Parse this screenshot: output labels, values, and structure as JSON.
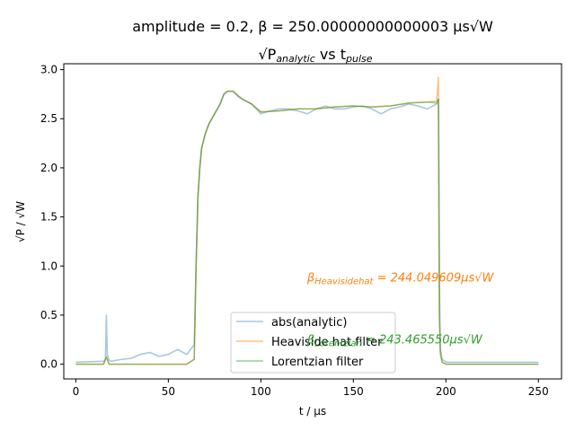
{
  "chart_data": {
    "type": "line",
    "title_line1": "amplitude = 0.2, β = 250.00000000000003 µs√W",
    "title_line2_base": "√P",
    "title_line2_sub": "analytic",
    "title_line2_mid": " vs t",
    "title_line2_sub2": "pulse",
    "xlabel": "t / µs",
    "ylabel": "√P / √W",
    "xlim": [
      -6.5,
      262.5
    ],
    "ylim": [
      -0.15,
      3.06
    ],
    "xticks": [
      0,
      50,
      100,
      150,
      200,
      250
    ],
    "yticks": [
      0.0,
      0.5,
      1.0,
      1.5,
      2.0,
      2.5,
      3.0
    ],
    "xtick_labels": [
      "0",
      "50",
      "100",
      "150",
      "200",
      "250"
    ],
    "ytick_labels": [
      "0.0",
      "0.5",
      "1.0",
      "1.5",
      "2.0",
      "2.5",
      "3.0"
    ],
    "grid": false,
    "legend_position": "lower-center",
    "series": [
      {
        "name": "abs(analytic)",
        "color": "#1f77b4",
        "alpha": 0.4,
        "x": [
          0,
          15,
          16,
          16.5,
          17,
          18,
          19,
          25,
          30,
          35,
          40,
          45,
          50,
          55,
          60,
          64,
          65,
          66,
          67,
          68,
          70,
          72,
          75,
          78,
          80,
          82,
          85,
          88,
          90,
          92,
          95,
          100,
          105,
          110,
          115,
          120,
          125,
          130,
          135,
          140,
          145,
          150,
          155,
          160,
          165,
          170,
          175,
          180,
          185,
          190,
          195,
          196,
          196.5,
          197,
          198,
          200,
          210,
          220,
          230,
          240,
          250
        ],
        "y": [
          0.02,
          0.03,
          0.05,
          0.5,
          0.1,
          0.04,
          0.03,
          0.05,
          0.06,
          0.1,
          0.12,
          0.08,
          0.1,
          0.15,
          0.1,
          0.2,
          1.0,
          1.7,
          2.0,
          2.2,
          2.35,
          2.45,
          2.55,
          2.65,
          2.75,
          2.78,
          2.78,
          2.72,
          2.7,
          2.68,
          2.65,
          2.55,
          2.58,
          2.6,
          2.6,
          2.58,
          2.55,
          2.6,
          2.63,
          2.6,
          2.6,
          2.62,
          2.63,
          2.6,
          2.55,
          2.6,
          2.62,
          2.65,
          2.63,
          2.6,
          2.65,
          2.7,
          0.8,
          0.15,
          0.05,
          0.02,
          0.02,
          0.02,
          0.02,
          0.02,
          0.02
        ]
      },
      {
        "name": "Heaviside hat filter",
        "color": "#ff7f0e",
        "alpha": 0.5,
        "x": [
          0,
          15,
          16.5,
          18,
          30,
          50,
          60,
          64,
          65,
          66,
          67,
          68,
          70,
          72,
          75,
          78,
          80,
          82,
          85,
          88,
          90,
          95,
          100,
          110,
          120,
          130,
          140,
          150,
          160,
          170,
          180,
          190,
          195,
          196,
          196.5,
          197,
          198,
          200,
          210,
          230,
          250
        ],
        "y": [
          0.0,
          0.0,
          0.08,
          0.0,
          0.0,
          0.0,
          0.0,
          0.05,
          1.0,
          1.7,
          2.0,
          2.2,
          2.35,
          2.45,
          2.55,
          2.65,
          2.75,
          2.78,
          2.78,
          2.73,
          2.7,
          2.65,
          2.57,
          2.58,
          2.6,
          2.6,
          2.62,
          2.63,
          2.62,
          2.63,
          2.66,
          2.67,
          2.68,
          2.92,
          0.5,
          0.15,
          0.02,
          0.0,
          0.0,
          0.0,
          0.0
        ]
      },
      {
        "name": "Lorentzian filter",
        "color": "#2ca02c",
        "alpha": 0.5,
        "x": [
          0,
          15,
          16.5,
          18,
          30,
          50,
          60,
          64,
          65,
          66,
          67,
          68,
          70,
          72,
          75,
          78,
          80,
          82,
          85,
          88,
          90,
          95,
          100,
          110,
          120,
          130,
          140,
          150,
          160,
          170,
          180,
          190,
          195,
          196,
          196.5,
          197,
          198,
          200,
          210,
          230,
          250
        ],
        "y": [
          0.0,
          0.0,
          0.07,
          0.0,
          0.0,
          0.0,
          0.0,
          0.05,
          1.0,
          1.7,
          2.0,
          2.2,
          2.35,
          2.45,
          2.55,
          2.65,
          2.75,
          2.78,
          2.78,
          2.73,
          2.7,
          2.65,
          2.57,
          2.58,
          2.6,
          2.6,
          2.62,
          2.63,
          2.62,
          2.63,
          2.66,
          2.67,
          2.66,
          2.7,
          0.5,
          0.1,
          0.02,
          0.0,
          0.0,
          0.0,
          0.0
        ]
      }
    ],
    "annotations": [
      {
        "name": "heaviside",
        "base": "β",
        "sub": "Heavisidehat",
        "rest": " = 244.049609µs√W",
        "color": "#ff7f0e",
        "x": 125,
        "y": 0.84
      },
      {
        "name": "lorentzian",
        "base": "β",
        "sub": "Lorentzian",
        "rest": " = 243.465550µs√W",
        "color": "#2ca02c",
        "x": 125,
        "y": 0.21
      }
    ]
  }
}
